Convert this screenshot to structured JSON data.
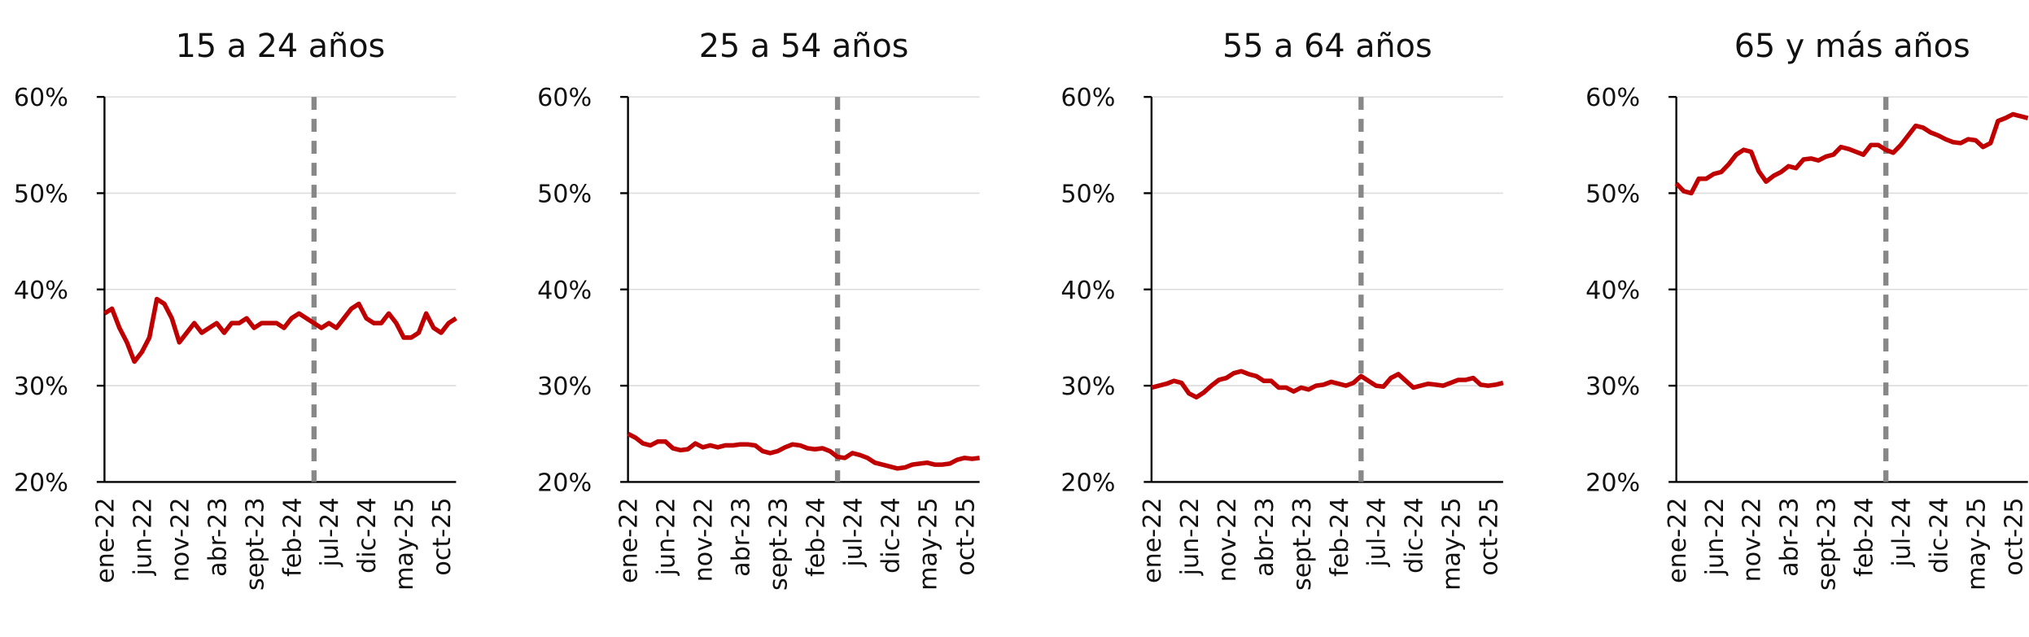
{
  "chart_data": [
    {
      "type": "line",
      "title": "15 a 24 años",
      "color": "#c00000",
      "categories": [
        "ene-22",
        null,
        null,
        null,
        null,
        "jun-22",
        null,
        null,
        null,
        null,
        "nov-22",
        null,
        null,
        null,
        null,
        "abr-23",
        null,
        null,
        null,
        null,
        "sept-23",
        null,
        null,
        null,
        null,
        "feb-24",
        null,
        null,
        null,
        null,
        "jul-24",
        null,
        null,
        null,
        null,
        "dic-24",
        null,
        null,
        null,
        null,
        "may-25",
        null,
        null,
        null,
        null,
        "oct-25",
        null,
        null
      ],
      "values": [
        37.5,
        38,
        36,
        34.5,
        32.5,
        33.5,
        35,
        39,
        38.5,
        37,
        34.5,
        35.5,
        36.5,
        35.5,
        36,
        36.5,
        35.5,
        36.5,
        36.5,
        37,
        36,
        36.5,
        36.5,
        36.5,
        36,
        37,
        37.5,
        37,
        36.5,
        36,
        36.5,
        36,
        37,
        38,
        38.5,
        37,
        36.5,
        36.5,
        37.5,
        36.5,
        35,
        35,
        35.5,
        37.5,
        36,
        35.5,
        36.5,
        37
      ],
      "ylim": [
        20,
        60
      ],
      "yticks": [
        {
          "value": 20,
          "label": "20%"
        },
        {
          "value": 30,
          "label": "30%"
        },
        {
          "value": 40,
          "label": "40%"
        },
        {
          "value": 50,
          "label": "50%"
        },
        {
          "value": 60,
          "label": "60%"
        }
      ],
      "grid": true
    },
    {
      "type": "line",
      "title": "25 a 54 años",
      "color": "#c00000",
      "categories": [
        "ene-22",
        null,
        null,
        null,
        null,
        "jun-22",
        null,
        null,
        null,
        null,
        "nov-22",
        null,
        null,
        null,
        null,
        "abr-23",
        null,
        null,
        null,
        null,
        "sept-23",
        null,
        null,
        null,
        null,
        "feb-24",
        null,
        null,
        null,
        null,
        "jul-24",
        null,
        null,
        null,
        null,
        "dic-24",
        null,
        null,
        null,
        null,
        "may-25",
        null,
        null,
        null,
        null,
        "oct-25",
        null,
        null
      ],
      "values": [
        25,
        24.6,
        24,
        23.8,
        24.2,
        24.2,
        23.5,
        23.3,
        23.4,
        24,
        23.6,
        23.8,
        23.6,
        23.8,
        23.8,
        23.9,
        23.9,
        23.8,
        23.2,
        23,
        23.2,
        23.6,
        23.9,
        23.8,
        23.5,
        23.4,
        23.5,
        23.2,
        22.6,
        22.5,
        23,
        22.8,
        22.5,
        22,
        21.8,
        21.6,
        21.4,
        21.5,
        21.8,
        21.9,
        22,
        21.8,
        21.8,
        21.9,
        22.3,
        22.5,
        22.4,
        22.5
      ],
      "ylim": [
        20,
        60
      ],
      "yticks": [
        {
          "value": 20,
          "label": "20%"
        },
        {
          "value": 30,
          "label": "30%"
        },
        {
          "value": 40,
          "label": "40%"
        },
        {
          "value": 50,
          "label": "50%"
        },
        {
          "value": 60,
          "label": "60%"
        }
      ],
      "grid": true
    },
    {
      "type": "line",
      "title": "55 a 64 años",
      "color": "#c00000",
      "categories": [
        "ene-22",
        null,
        null,
        null,
        null,
        "jun-22",
        null,
        null,
        null,
        null,
        "nov-22",
        null,
        null,
        null,
        null,
        "abr-23",
        null,
        null,
        null,
        null,
        "sept-23",
        null,
        null,
        null,
        null,
        "feb-24",
        null,
        null,
        null,
        null,
        "jul-24",
        null,
        null,
        null,
        null,
        "dic-24",
        null,
        null,
        null,
        null,
        "may-25",
        null,
        null,
        null,
        null,
        "oct-25",
        null,
        null
      ],
      "values": [
        29.8,
        30,
        30.2,
        30.5,
        30.3,
        29.2,
        28.8,
        29.3,
        30,
        30.6,
        30.8,
        31.3,
        31.5,
        31.2,
        31,
        30.5,
        30.5,
        29.8,
        29.8,
        29.4,
        29.8,
        29.6,
        30,
        30.1,
        30.4,
        30.2,
        30,
        30.3,
        31,
        30.5,
        30,
        29.9,
        30.8,
        31.2,
        30.5,
        29.8,
        30,
        30.2,
        30.1,
        30,
        30.3,
        30.6,
        30.6,
        30.8,
        30.1,
        30,
        30.1,
        30.3
      ],
      "ylim": [
        20,
        60
      ],
      "yticks": [
        {
          "value": 20,
          "label": "20%"
        },
        {
          "value": 30,
          "label": "30%"
        },
        {
          "value": 40,
          "label": "40%"
        },
        {
          "value": 50,
          "label": "50%"
        },
        {
          "value": 60,
          "label": "60%"
        }
      ],
      "grid": true
    },
    {
      "type": "line",
      "title": "65 y más años",
      "color": "#c00000",
      "categories": [
        "ene-22",
        null,
        null,
        null,
        null,
        "jun-22",
        null,
        null,
        null,
        null,
        "nov-22",
        null,
        null,
        null,
        null,
        "abr-23",
        null,
        null,
        null,
        null,
        "sept-23",
        null,
        null,
        null,
        null,
        "feb-24",
        null,
        null,
        null,
        null,
        "jul-24",
        null,
        null,
        null,
        null,
        "dic-24",
        null,
        null,
        null,
        null,
        "may-25",
        null,
        null,
        null,
        null,
        "oct-25",
        null,
        null
      ],
      "values": [
        51,
        50.2,
        50,
        51.5,
        51.5,
        52,
        52.2,
        53,
        54,
        54.5,
        54.3,
        52.3,
        51.2,
        51.8,
        52.2,
        52.8,
        52.6,
        53.5,
        53.6,
        53.4,
        53.8,
        54,
        54.8,
        54.6,
        54.3,
        54,
        55,
        55,
        54.5,
        54.2,
        55,
        56,
        57,
        56.8,
        56.3,
        56,
        55.6,
        55.3,
        55.2,
        55.6,
        55.5,
        54.8,
        55.2,
        57.5,
        57.8,
        58.2,
        58,
        57.8
      ],
      "ylim": [
        20,
        60
      ],
      "yticks": [
        {
          "value": 20,
          "label": "20%"
        },
        {
          "value": 30,
          "label": "30%"
        },
        {
          "value": 40,
          "label": "40%"
        },
        {
          "value": 50,
          "label": "50%"
        },
        {
          "value": 60,
          "label": "60%"
        }
      ],
      "grid": true
    }
  ]
}
